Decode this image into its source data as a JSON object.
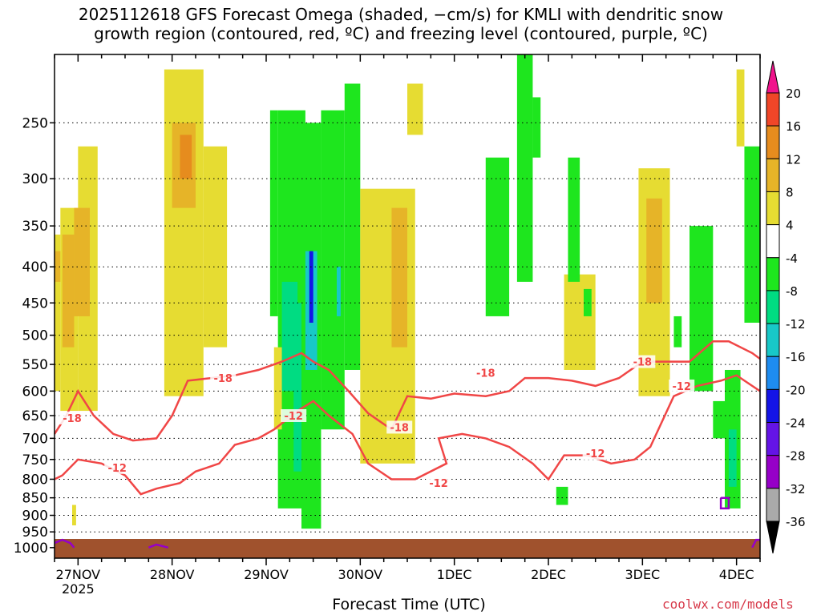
{
  "title_line1": "2025112618 GFS Forecast Omega (shaded, −cm/s) for KMLI with dendritic snow",
  "title_line2": "growth region (contoured, red, ºC) and freezing level (contoured, purple, ºC)",
  "credit": "coolwx.com/models",
  "chart_data": {
    "type": "heatmap",
    "xlabel": "Forecast Time (UTC)",
    "ylabel": "",
    "x_unit": "hours from 2025-11-26 18Z",
    "xlim": [
      0,
      180
    ],
    "x_ticks": [
      {
        "hour": 6,
        "label": "27NOV",
        "sub": "2025"
      },
      {
        "hour": 30,
        "label": "28NOV"
      },
      {
        "hour": 54,
        "label": "29NOV"
      },
      {
        "hour": 78,
        "label": "30NOV"
      },
      {
        "hour": 102,
        "label": "1DEC"
      },
      {
        "hour": 126,
        "label": "2DEC"
      },
      {
        "hour": 150,
        "label": "3DEC"
      },
      {
        "hour": 174,
        "label": "4DEC"
      }
    ],
    "y_unit": "hPa",
    "y_scale": "log",
    "ylim": [
      1035,
      200
    ],
    "y_ticks": [
      250,
      300,
      350,
      400,
      450,
      500,
      550,
      600,
      650,
      700,
      750,
      800,
      850,
      900,
      950,
      1000
    ],
    "grid": "dotted",
    "colorbar": {
      "levels": [
        -36,
        -32,
        -28,
        -24,
        -20,
        -16,
        -12,
        -8,
        -4,
        4,
        8,
        12,
        16,
        20
      ],
      "labels": [
        "-36",
        "-32",
        "-28",
        "-24",
        "-20",
        "-16",
        "-12",
        "-8",
        "-4",
        "4",
        "8",
        "12",
        "16",
        "20"
      ],
      "colors": [
        "#aaaaaa",
        "#9600c8",
        "#6414e6",
        "#1414e6",
        "#1e8cf0",
        "#18c8c8",
        "#00dc82",
        "#1ee61e",
        "#ffffff",
        "#e6dc32",
        "#e6b428",
        "#e68c1e",
        "#f04628",
        "#f03c64"
      ],
      "under_color": "#000000",
      "over_color": "#f0148c"
    },
    "omega_cells": [
      {
        "t0": 0,
        "t1": 1.5,
        "p0": 360,
        "p1": 600,
        "value": 6
      },
      {
        "t0": 0,
        "t1": 1.5,
        "p0": 380,
        "p1": 420,
        "value": 9
      },
      {
        "t0": 1.5,
        "t1": 6,
        "p0": 330,
        "p1": 640,
        "value": 5
      },
      {
        "t0": 6,
        "t1": 11,
        "p0": 270,
        "p1": 640,
        "value": 5
      },
      {
        "t0": 2,
        "t1": 5,
        "p0": 360,
        "p1": 520,
        "value": 9
      },
      {
        "t0": 5,
        "t1": 9,
        "p0": 330,
        "p1": 470,
        "value": 10
      },
      {
        "t0": 4.5,
        "t1": 5.5,
        "p0": 870,
        "p1": 930,
        "value": 5
      },
      {
        "t0": 28,
        "t1": 38,
        "p0": 210,
        "p1": 610,
        "value": 5
      },
      {
        "t0": 30,
        "t1": 36,
        "p0": 250,
        "p1": 330,
        "value": 9
      },
      {
        "t0": 32,
        "t1": 35,
        "p0": 260,
        "p1": 300,
        "value": 12
      },
      {
        "t0": 38,
        "t1": 44,
        "p0": 270,
        "p1": 520,
        "value": 5
      },
      {
        "t0": 55,
        "t1": 57,
        "p0": 240,
        "p1": 470,
        "value": -6
      },
      {
        "t0": 57,
        "t1": 64,
        "p0": 240,
        "p1": 880,
        "value": -6
      },
      {
        "t0": 58,
        "t1": 62,
        "p0": 420,
        "p1": 600,
        "value": -10
      },
      {
        "t0": 61,
        "t1": 63,
        "p0": 450,
        "p1": 780,
        "value": -10
      },
      {
        "t0": 63,
        "t1": 68,
        "p0": 250,
        "p1": 940,
        "value": -6
      },
      {
        "t0": 64,
        "t1": 67,
        "p0": 380,
        "p1": 560,
        "value": -13
      },
      {
        "t0": 65,
        "t1": 66,
        "p0": 380,
        "p1": 480,
        "value": -22
      },
      {
        "t0": 68,
        "t1": 74,
        "p0": 240,
        "p1": 680,
        "value": -6
      },
      {
        "t0": 72,
        "t1": 73,
        "p0": 400,
        "p1": 470,
        "value": -13
      },
      {
        "t0": 74,
        "t1": 78,
        "p0": 220,
        "p1": 560,
        "value": -5
      },
      {
        "t0": 56,
        "t1": 58,
        "p0": 520,
        "p1": 680,
        "value": 5
      },
      {
        "t0": 78,
        "t1": 92,
        "p0": 310,
        "p1": 760,
        "value": 5
      },
      {
        "t0": 86,
        "t1": 90,
        "p0": 330,
        "p1": 520,
        "value": 8
      },
      {
        "t0": 87,
        "t1": 89,
        "p0": 390,
        "p1": 440,
        "value": 11
      },
      {
        "t0": 90,
        "t1": 94,
        "p0": 220,
        "p1": 260,
        "value": 5
      },
      {
        "t0": 110,
        "t1": 116,
        "p0": 280,
        "p1": 470,
        "value": -5
      },
      {
        "t0": 118,
        "t1": 122,
        "p0": 200,
        "p1": 420,
        "value": -6
      },
      {
        "t0": 122,
        "t1": 124,
        "p0": 230,
        "p1": 280,
        "value": -6
      },
      {
        "t0": 130,
        "t1": 138,
        "p0": 410,
        "p1": 560,
        "value": 5
      },
      {
        "t0": 131,
        "t1": 134,
        "p0": 280,
        "p1": 420,
        "value": -5
      },
      {
        "t0": 135,
        "t1": 137,
        "p0": 430,
        "p1": 470,
        "value": -6
      },
      {
        "t0": 128,
        "t1": 131,
        "p0": 820,
        "p1": 870,
        "value": -6
      },
      {
        "t0": 149,
        "t1": 157,
        "p0": 290,
        "p1": 610,
        "value": 5
      },
      {
        "t0": 151,
        "t1": 155,
        "p0": 320,
        "p1": 450,
        "value": 9
      },
      {
        "t0": 158,
        "t1": 160,
        "p0": 470,
        "p1": 520,
        "value": -6
      },
      {
        "t0": 162,
        "t1": 168,
        "p0": 350,
        "p1": 600,
        "value": -5
      },
      {
        "t0": 168,
        "t1": 172,
        "p0": 620,
        "p1": 700,
        "value": -6
      },
      {
        "t0": 171,
        "t1": 175,
        "p0": 560,
        "p1": 880,
        "value": -6
      },
      {
        "t0": 172,
        "t1": 174,
        "p0": 680,
        "p1": 820,
        "value": -11
      },
      {
        "t0": 174,
        "t1": 176,
        "p0": 210,
        "p1": 270,
        "value": 5
      },
      {
        "t0": 176,
        "t1": 180,
        "p0": 270,
        "p1": 480,
        "value": -6
      }
    ],
    "dgz_contours": [
      {
        "label": "-18",
        "points": [
          [
            0,
            690
          ],
          [
            3,
            650
          ],
          [
            6,
            600
          ],
          [
            10,
            650
          ],
          [
            15,
            690
          ],
          [
            20,
            705
          ],
          [
            26,
            700
          ],
          [
            30,
            650
          ],
          [
            34,
            580
          ],
          [
            40,
            575
          ],
          [
            46,
            570
          ],
          [
            52,
            560
          ],
          [
            58,
            545
          ],
          [
            63,
            530
          ],
          [
            66,
            545
          ],
          [
            70,
            560
          ],
          [
            75,
            600
          ],
          [
            80,
            645
          ],
          [
            86,
            680
          ],
          [
            90,
            610
          ],
          [
            96,
            615
          ],
          [
            102,
            605
          ],
          [
            110,
            610
          ],
          [
            116,
            600
          ],
          [
            120,
            575
          ],
          [
            126,
            575
          ],
          [
            132,
            580
          ],
          [
            138,
            590
          ],
          [
            144,
            575
          ],
          [
            150,
            545
          ],
          [
            156,
            545
          ],
          [
            162,
            545
          ],
          [
            168,
            510
          ],
          [
            172,
            510
          ],
          [
            178,
            530
          ],
          [
            180,
            540
          ]
        ],
        "label_positions": [
          [
            4.5,
            655
          ],
          [
            43,
            575
          ],
          [
            88,
            675
          ],
          [
            110,
            565
          ],
          [
            150,
            545
          ]
        ]
      },
      {
        "label": "-12",
        "points": [
          [
            0,
            800
          ],
          [
            2,
            790
          ],
          [
            6,
            750
          ],
          [
            12,
            760
          ],
          [
            18,
            790
          ],
          [
            22,
            840
          ],
          [
            26,
            825
          ],
          [
            32,
            810
          ],
          [
            36,
            780
          ],
          [
            42,
            760
          ],
          [
            46,
            715
          ],
          [
            52,
            700
          ],
          [
            56,
            680
          ],
          [
            62,
            640
          ],
          [
            66,
            620
          ],
          [
            70,
            650
          ],
          [
            76,
            690
          ],
          [
            80,
            760
          ],
          [
            86,
            800
          ],
          [
            92,
            800
          ],
          [
            100,
            760
          ],
          [
            98,
            700
          ],
          [
            104,
            690
          ],
          [
            110,
            700
          ],
          [
            116,
            720
          ],
          [
            122,
            760
          ],
          [
            126,
            800
          ],
          [
            130,
            740
          ],
          [
            136,
            740
          ],
          [
            142,
            760
          ],
          [
            148,
            750
          ],
          [
            152,
            720
          ],
          [
            158,
            610
          ],
          [
            164,
            590
          ],
          [
            170,
            580
          ],
          [
            174,
            570
          ],
          [
            178,
            590
          ],
          [
            180,
            600
          ]
        ],
        "label_positions": [
          [
            16,
            770
          ],
          [
            61,
            650
          ],
          [
            98,
            810
          ],
          [
            138,
            735
          ],
          [
            160,
            590
          ]
        ]
      }
    ],
    "freezing_contours": [
      {
        "points": [
          [
            0,
            985
          ],
          [
            2,
            975
          ],
          [
            4,
            985
          ],
          [
            5,
            1000
          ]
        ]
      },
      {
        "points": [
          [
            24,
            1000
          ],
          [
            26,
            990
          ],
          [
            29,
            1000
          ]
        ]
      },
      {
        "points": [
          [
            170,
            850
          ],
          [
            172,
            850
          ],
          [
            172,
            880
          ],
          [
            170,
            880
          ],
          [
            170,
            850
          ]
        ]
      },
      {
        "points": [
          [
            178,
            1000
          ],
          [
            179,
            975
          ],
          [
            180,
            975
          ]
        ]
      }
    ]
  }
}
